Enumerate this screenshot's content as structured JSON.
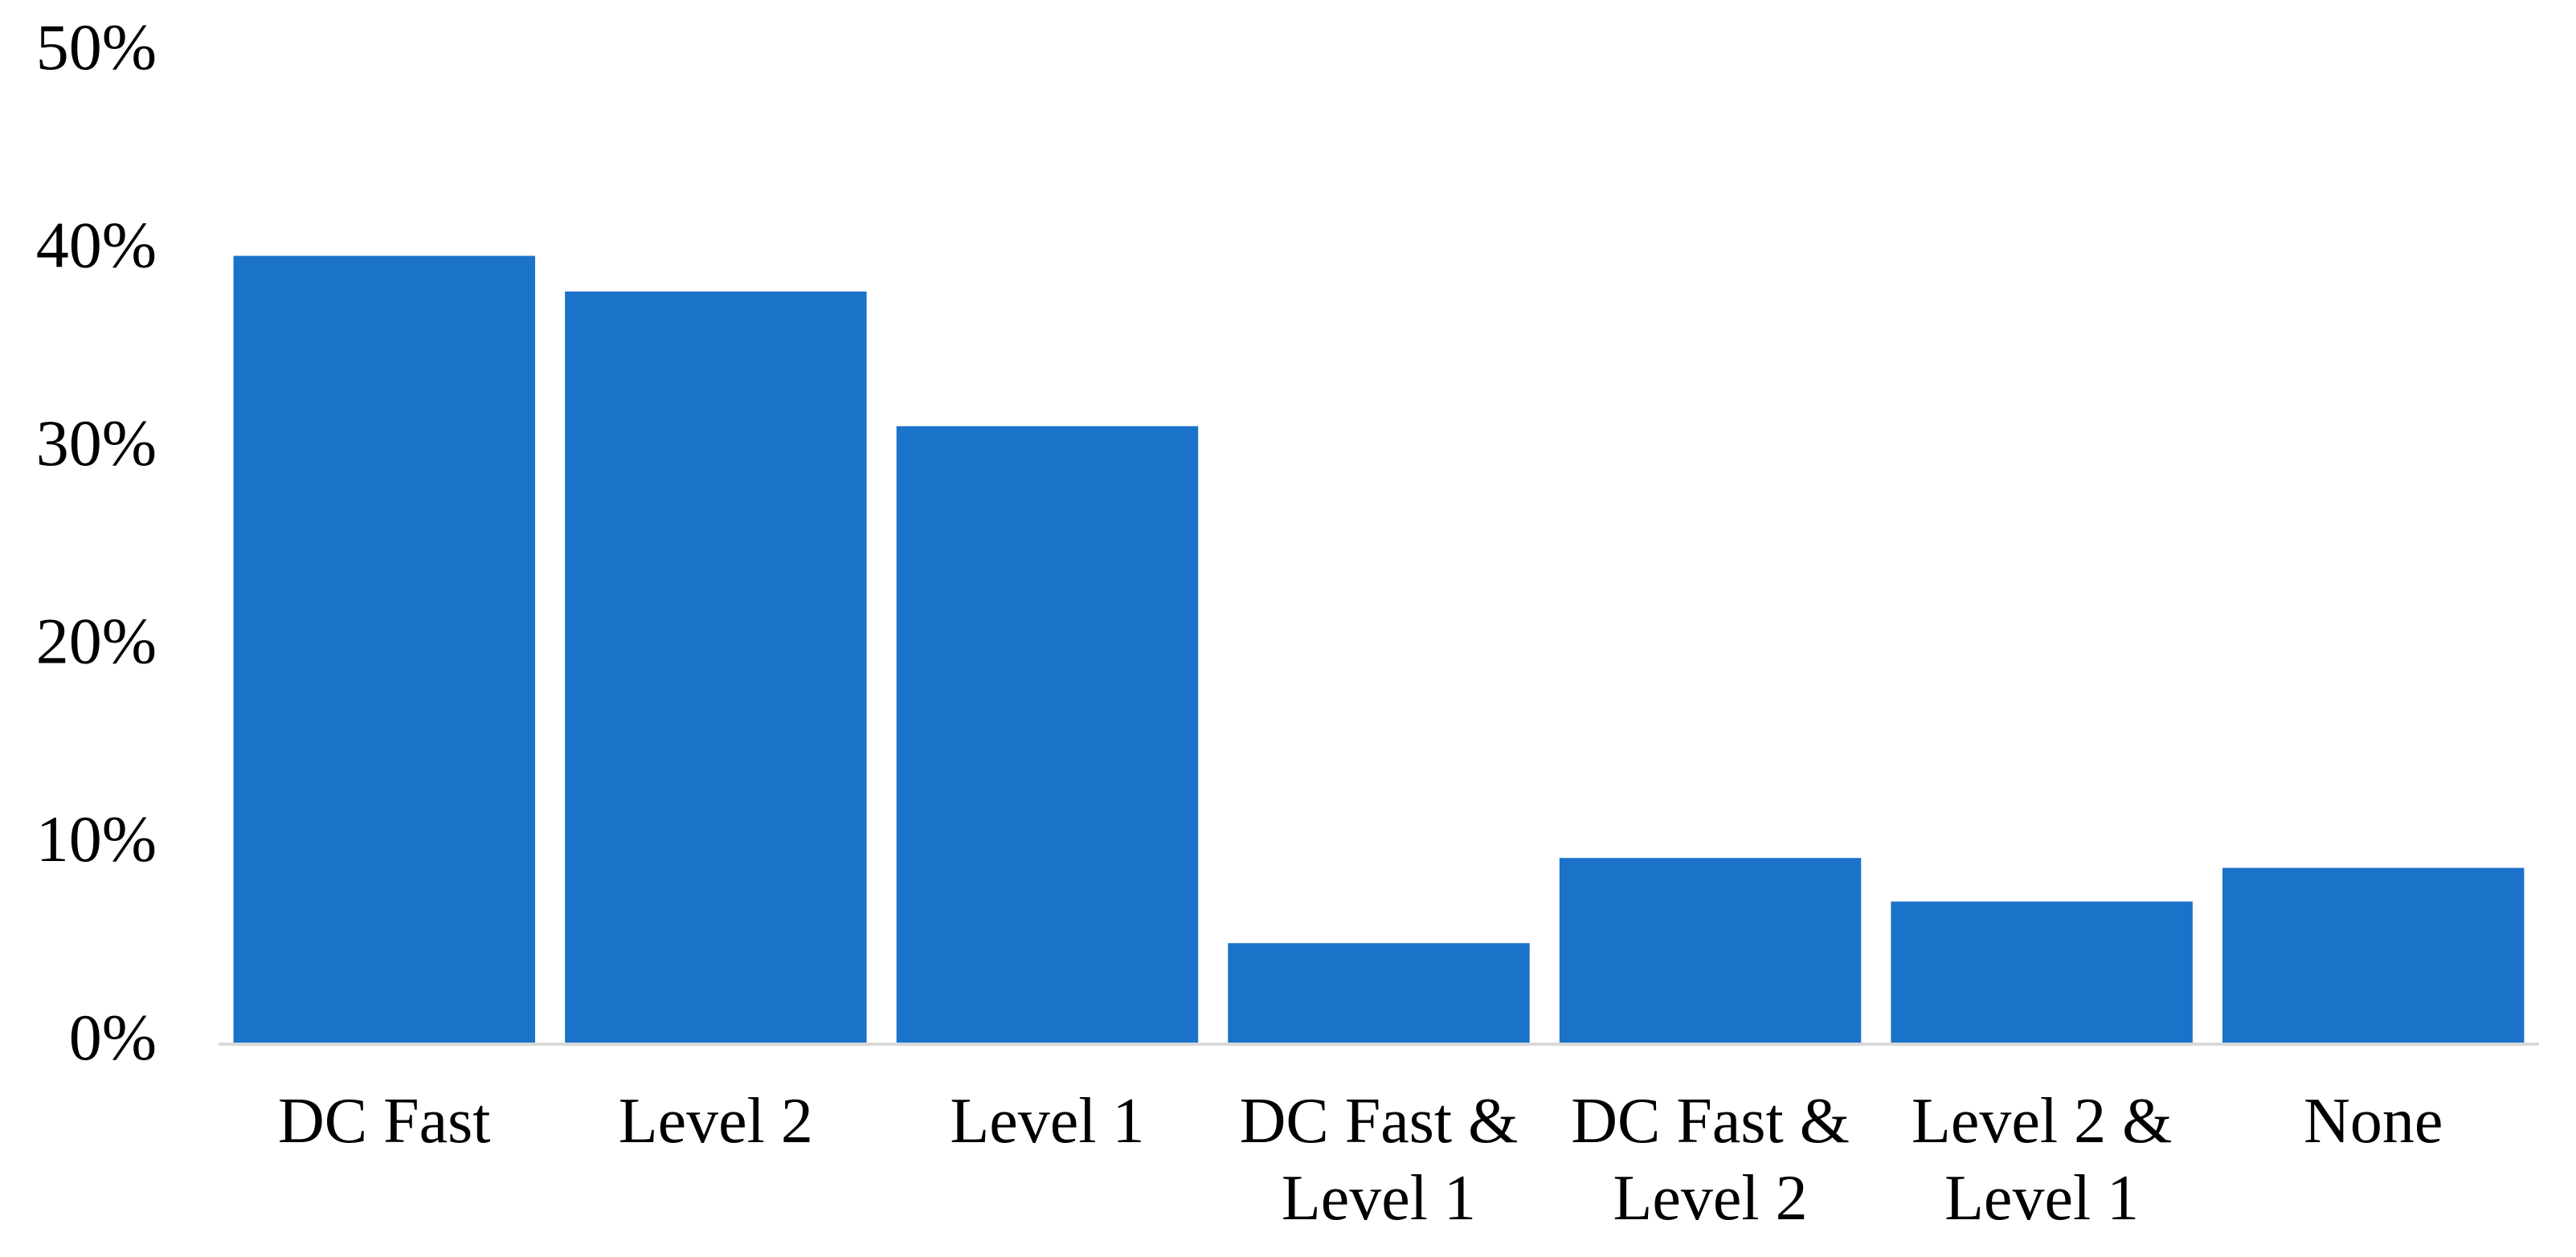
{
  "chart_data": {
    "type": "bar",
    "categories": [
      "DC Fast",
      "Level 2",
      "Level 1",
      "DC Fast & Level 1",
      "DC Fast & Level 2",
      "Level 2 & Level 1",
      "None"
    ],
    "values": [
      39.8,
      38.0,
      31.2,
      5.1,
      9.4,
      7.2,
      8.9
    ],
    "color": "#1b72c9",
    "ylim": [
      0,
      50
    ],
    "yticks": [
      {
        "value": 0,
        "label": "0%"
      },
      {
        "value": 10,
        "label": "10%"
      },
      {
        "value": 20,
        "label": "20%"
      },
      {
        "value": 30,
        "label": "30%"
      },
      {
        "value": 40,
        "label": "40%"
      },
      {
        "value": 50,
        "label": "50%"
      }
    ],
    "grid": false
  }
}
